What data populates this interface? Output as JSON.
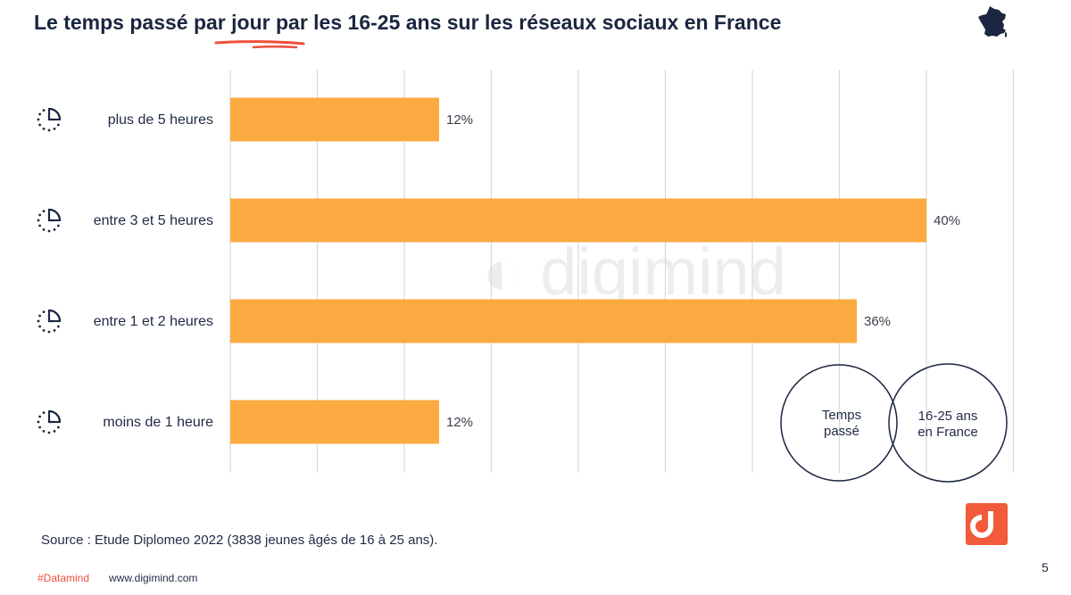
{
  "header": {
    "title_part1": "Le temps passé ",
    "title_part2": "par jour",
    "title_part3": " par les 16-25 ans sur les réseaux sociaux en France"
  },
  "chart_data": {
    "type": "bar",
    "orientation": "horizontal",
    "categories": [
      "plus de 5 heures",
      "entre 3 et 5 heures",
      "entre 1 et 2 heures",
      "moins de 1 heure"
    ],
    "values": [
      12,
      40,
      36,
      12
    ],
    "data_labels": [
      "12%",
      "40%",
      "36%",
      "12%"
    ],
    "xlim": [
      0,
      45
    ],
    "grid": true,
    "bar_color": "#fbaa42",
    "grid_color": "#d9d9d9",
    "icon": "clock-icon"
  },
  "venn": {
    "left_label_line1": "Temps",
    "left_label_line2": "passé",
    "right_label_line1": "16-25 ans",
    "right_label_line2": "en France"
  },
  "watermark": "digimind",
  "source": "Source : Etude Diplomeo 2022 (3838 jeunes âgés de 16 à 25 ans).",
  "footer": {
    "hashtag": "#Datamind",
    "site": "www.digimind.com",
    "page": "5"
  },
  "colors": {
    "accent": "#f04e3a",
    "navy": "#1b2640"
  }
}
